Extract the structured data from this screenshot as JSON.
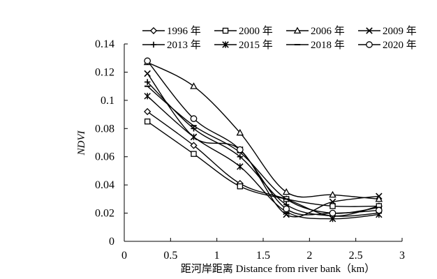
{
  "chart_data": {
    "type": "line",
    "xlabel": "距河岸距离  Distance from river bank（km）",
    "ylabel": "NDVI",
    "xlim": [
      0,
      3
    ],
    "ylim": [
      0,
      0.14
    ],
    "x_ticks": [
      0,
      0.5,
      1,
      1.5,
      2,
      2.5,
      3
    ],
    "x_tick_labels": [
      "0",
      "0.5",
      "1",
      "1.5",
      "2",
      "2.5",
      "3"
    ],
    "y_ticks": [
      0,
      0.02,
      0.04,
      0.06,
      0.08,
      0.1,
      0.12,
      0.14
    ],
    "y_tick_labels": [
      "0",
      "0.02",
      "0.04",
      "0.06",
      "0.08",
      "0.1",
      "0.12",
      "0.14"
    ],
    "grid": false,
    "legend_position": "top",
    "x": [
      0.25,
      0.75,
      1.25,
      1.75,
      2.25,
      2.75
    ],
    "series": [
      {
        "name": "1996 年",
        "marker": "diamond",
        "values": [
          0.092,
          0.068,
          0.041,
          0.03,
          0.018,
          0.025
        ]
      },
      {
        "name": "2000 年",
        "marker": "square",
        "values": [
          0.085,
          0.062,
          0.039,
          0.03,
          0.025,
          0.025
        ]
      },
      {
        "name": "2006 年",
        "marker": "triangle",
        "values": [
          0.127,
          0.11,
          0.077,
          0.035,
          0.033,
          0.03
        ]
      },
      {
        "name": "2009 年",
        "marker": "x",
        "values": [
          0.119,
          0.074,
          0.065,
          0.019,
          0.028,
          0.032
        ]
      },
      {
        "name": "2013 年",
        "marker": "plus",
        "values": [
          0.113,
          0.08,
          0.06,
          0.026,
          0.018,
          0.02
        ]
      },
      {
        "name": "2015 年",
        "marker": "asterisk",
        "values": [
          0.103,
          0.074,
          0.053,
          0.021,
          0.016,
          0.019
        ]
      },
      {
        "name": "2018 年",
        "marker": "dash",
        "values": [
          0.11,
          0.082,
          0.063,
          0.03,
          0.02,
          0.024
        ]
      },
      {
        "name": "2020 年",
        "marker": "circle",
        "values": [
          0.128,
          0.087,
          0.065,
          0.023,
          0.02,
          0.022
        ]
      }
    ],
    "line_color": "#000000"
  }
}
